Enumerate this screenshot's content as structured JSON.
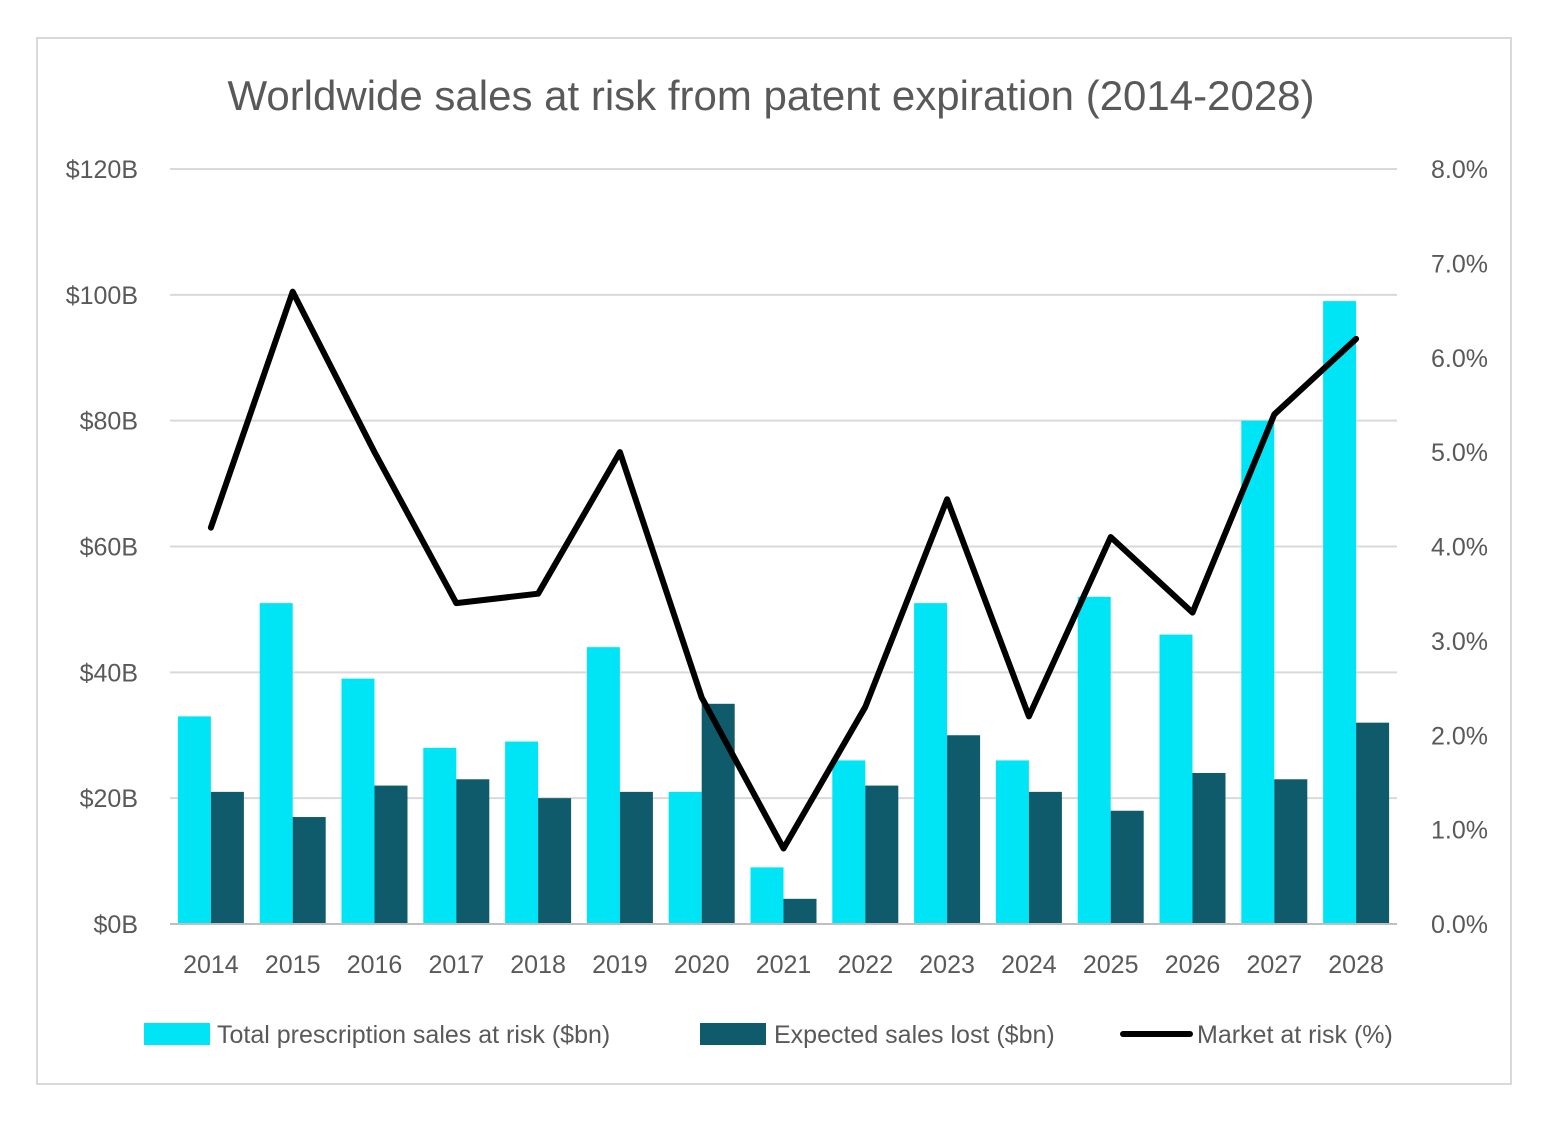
{
  "chart_data": {
    "type": "bar",
    "title": "Worldwide sales at risk from patent expiration (2014-2028)",
    "categories": [
      "2014",
      "2015",
      "2016",
      "2017",
      "2018",
      "2019",
      "2020",
      "2021",
      "2022",
      "2023",
      "2024",
      "2025",
      "2026",
      "2027",
      "2028"
    ],
    "series": [
      {
        "name": "Total prescription sales at risk ($bn)",
        "type": "bar",
        "axis": "left",
        "color": "#00e5f5",
        "values": [
          33,
          51,
          39,
          28,
          29,
          44,
          21,
          9,
          26,
          51,
          26,
          52,
          46,
          80,
          99
        ]
      },
      {
        "name": "Expected sales lost ($bn)",
        "type": "bar",
        "axis": "left",
        "color": "#0f5a6b",
        "values": [
          21,
          17,
          22,
          23,
          20,
          21,
          35,
          4,
          22,
          30,
          21,
          18,
          24,
          23,
          32
        ]
      },
      {
        "name": "Market at risk (%)",
        "type": "line",
        "axis": "right",
        "color": "#000000",
        "values": [
          4.2,
          6.7,
          5.0,
          3.4,
          3.5,
          5.0,
          2.4,
          0.8,
          2.3,
          4.5,
          2.2,
          4.1,
          3.3,
          5.4,
          6.2
        ]
      }
    ],
    "y_left": {
      "lim": [
        0,
        120
      ],
      "ticks": [
        0,
        20,
        40,
        60,
        80,
        100,
        120
      ],
      "tick_labels": [
        "$0B",
        "$20B",
        "$40B",
        "$60B",
        "$80B",
        "$100B",
        "$120B"
      ]
    },
    "y_right": {
      "lim": [
        0,
        8
      ],
      "ticks": [
        0,
        1,
        2,
        3,
        4,
        5,
        6,
        7,
        8
      ],
      "tick_labels": [
        "0.0%",
        "1.0%",
        "2.0%",
        "3.0%",
        "4.0%",
        "5.0%",
        "6.0%",
        "7.0%",
        "8.0%"
      ]
    },
    "grid": "horizontal",
    "legend_position": "bottom"
  }
}
